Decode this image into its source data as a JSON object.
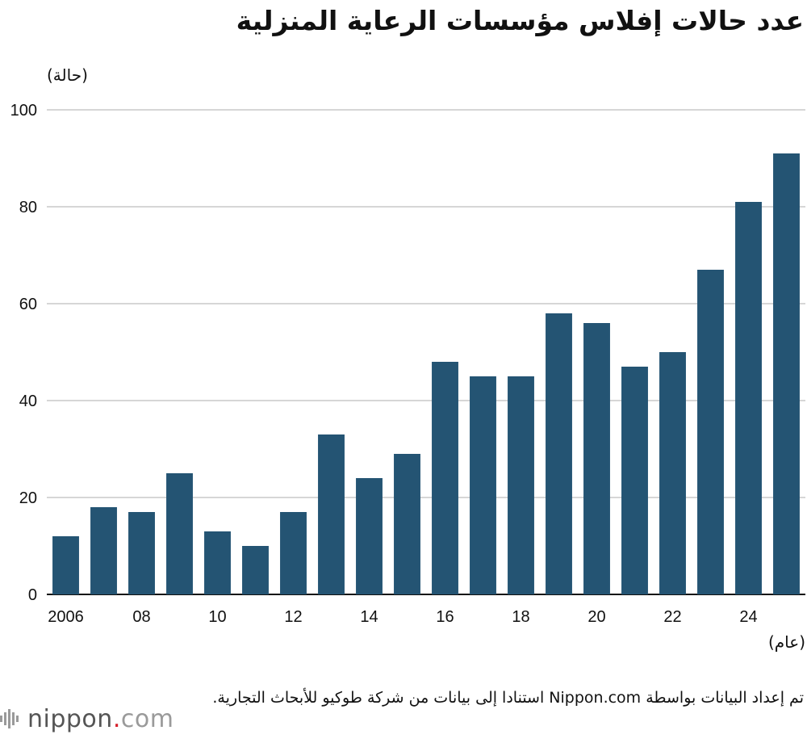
{
  "title": "عدد حالات إفلاس مؤسسات الرعاية المنزلية",
  "chart_data": {
    "type": "bar",
    "title": "عدد حالات إفلاس مؤسسات الرعاية المنزلية",
    "ylabel": "(حالة)",
    "xlabel": "(عام)",
    "x": [
      2006,
      2007,
      2008,
      2009,
      2010,
      2011,
      2012,
      2013,
      2014,
      2015,
      2016,
      2017,
      2018,
      2019,
      2020,
      2021,
      2022,
      2023,
      2024,
      2025
    ],
    "values": [
      12,
      18,
      17,
      25,
      13,
      10,
      17,
      33,
      24,
      29,
      48,
      45,
      45,
      58,
      56,
      47,
      50,
      67,
      81,
      91
    ],
    "x_tick_labels": [
      "2006",
      "",
      "08",
      "",
      "10",
      "",
      "12",
      "",
      "14",
      "",
      "16",
      "",
      "18",
      "",
      "20",
      "",
      "22",
      "",
      "24",
      ""
    ],
    "y_ticks": [
      0,
      20,
      40,
      60,
      80,
      100
    ],
    "ylim": [
      0,
      100
    ],
    "grid": true,
    "bar_color": "#245473",
    "grid_color": "#c8c8c8"
  },
  "footer": {
    "source": "تم إعداد البيانات بواسطة Nippon.com استنادا إلى بيانات من شركة طوكيو للأبحاث التجارية.",
    "logo_name": "nippon",
    "logo_dot": ".",
    "logo_tld": "com"
  }
}
